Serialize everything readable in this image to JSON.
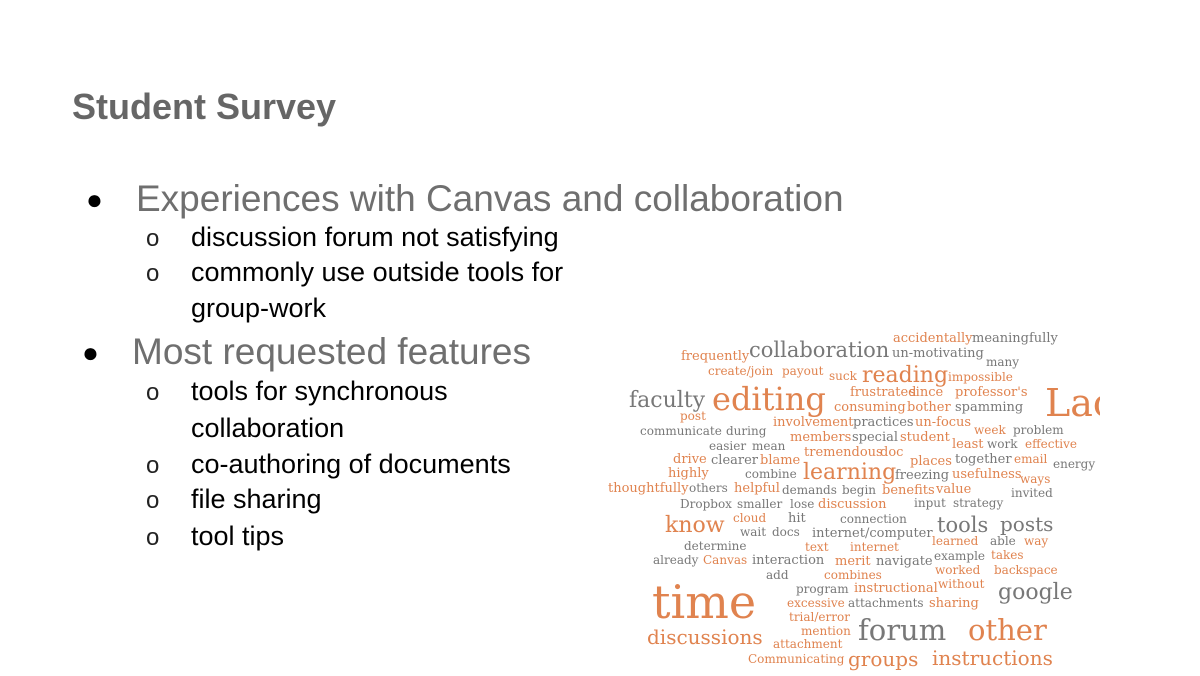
{
  "slide": {
    "title": "Student Survey",
    "bullets": [
      {
        "text": "Experiences with Canvas and collaboration",
        "sub": [
          "discussion forum not satisfying",
          "commonly use outside tools for",
          "group-work"
        ]
      },
      {
        "text": "Most requested features",
        "sub": [
          "tools for synchronous",
          "collaboration",
          "co-authoring of documents",
          "file sharing",
          "tool tips"
        ]
      }
    ],
    "bullet_glyph": "●",
    "sub_glyph": "o"
  },
  "word_cloud": {
    "colors": {
      "orange": "#e0834f",
      "gray": "#787878"
    },
    "words": [
      {
        "text": "accidentally",
        "c": "o"
      },
      {
        "text": "meaningfully",
        "c": "g"
      },
      {
        "text": "frequently",
        "c": "o"
      },
      {
        "text": "collaboration",
        "c": "g"
      },
      {
        "text": "un-motivating",
        "c": "g"
      },
      {
        "text": "many",
        "c": "g"
      },
      {
        "text": "create/join",
        "c": "o"
      },
      {
        "text": "payout",
        "c": "o"
      },
      {
        "text": "suck",
        "c": "o"
      },
      {
        "text": "reading",
        "c": "o"
      },
      {
        "text": "impossible",
        "c": "o"
      },
      {
        "text": "faculty",
        "c": "g"
      },
      {
        "text": "editing",
        "c": "o"
      },
      {
        "text": "frustrated",
        "c": "o"
      },
      {
        "text": "since",
        "c": "o"
      },
      {
        "text": "professor's",
        "c": "o"
      },
      {
        "text": "Lack",
        "c": "o"
      },
      {
        "text": "post",
        "c": "o"
      },
      {
        "text": "consuming",
        "c": "o"
      },
      {
        "text": "bother",
        "c": "o"
      },
      {
        "text": "spamming",
        "c": "g"
      },
      {
        "text": "communicate",
        "c": "g"
      },
      {
        "text": "during",
        "c": "g"
      },
      {
        "text": "involvement",
        "c": "o"
      },
      {
        "text": "practices",
        "c": "g"
      },
      {
        "text": "un-focus",
        "c": "o"
      },
      {
        "text": "week",
        "c": "o"
      },
      {
        "text": "problem",
        "c": "g"
      },
      {
        "text": "members",
        "c": "o"
      },
      {
        "text": "special",
        "c": "g"
      },
      {
        "text": "student",
        "c": "o"
      },
      {
        "text": "easier",
        "c": "g"
      },
      {
        "text": "mean",
        "c": "g"
      },
      {
        "text": "tremendous",
        "c": "o"
      },
      {
        "text": "doc",
        "c": "o"
      },
      {
        "text": "least",
        "c": "o"
      },
      {
        "text": "work",
        "c": "g"
      },
      {
        "text": "effective",
        "c": "o"
      },
      {
        "text": "drive",
        "c": "o"
      },
      {
        "text": "clearer",
        "c": "g"
      },
      {
        "text": "blame",
        "c": "o"
      },
      {
        "text": "places",
        "c": "o"
      },
      {
        "text": "together",
        "c": "g"
      },
      {
        "text": "email",
        "c": "o"
      },
      {
        "text": "energy",
        "c": "g"
      },
      {
        "text": "highly",
        "c": "o"
      },
      {
        "text": "combine",
        "c": "g"
      },
      {
        "text": "learning",
        "c": "o"
      },
      {
        "text": "freezing",
        "c": "g"
      },
      {
        "text": "usefulness",
        "c": "o"
      },
      {
        "text": "ways",
        "c": "o"
      },
      {
        "text": "thoughtfully",
        "c": "o"
      },
      {
        "text": "others",
        "c": "g"
      },
      {
        "text": "helpful",
        "c": "o"
      },
      {
        "text": "demands",
        "c": "g"
      },
      {
        "text": "begin",
        "c": "g"
      },
      {
        "text": "benefits",
        "c": "o"
      },
      {
        "text": "value",
        "c": "o"
      },
      {
        "text": "invited",
        "c": "g"
      },
      {
        "text": "Dropbox",
        "c": "g"
      },
      {
        "text": "smaller",
        "c": "g"
      },
      {
        "text": "lose",
        "c": "g"
      },
      {
        "text": "discussion",
        "c": "o"
      },
      {
        "text": "input",
        "c": "g"
      },
      {
        "text": "strategy",
        "c": "g"
      },
      {
        "text": "know",
        "c": "o"
      },
      {
        "text": "cloud",
        "c": "o"
      },
      {
        "text": "hit",
        "c": "g"
      },
      {
        "text": "connection",
        "c": "g"
      },
      {
        "text": "tools",
        "c": "g"
      },
      {
        "text": "posts",
        "c": "g"
      },
      {
        "text": "wait",
        "c": "g"
      },
      {
        "text": "docs",
        "c": "g"
      },
      {
        "text": "internet/computer",
        "c": "g"
      },
      {
        "text": "learned",
        "c": "o"
      },
      {
        "text": "able",
        "c": "g"
      },
      {
        "text": "way",
        "c": "o"
      },
      {
        "text": "determine",
        "c": "g"
      },
      {
        "text": "text",
        "c": "o"
      },
      {
        "text": "internet",
        "c": "o"
      },
      {
        "text": "example",
        "c": "g"
      },
      {
        "text": "takes",
        "c": "o"
      },
      {
        "text": "already",
        "c": "g"
      },
      {
        "text": "Canvas",
        "c": "o"
      },
      {
        "text": "interaction",
        "c": "g"
      },
      {
        "text": "merit",
        "c": "o"
      },
      {
        "text": "navigate",
        "c": "g"
      },
      {
        "text": "worked",
        "c": "o"
      },
      {
        "text": "backspace",
        "c": "o"
      },
      {
        "text": "add",
        "c": "g"
      },
      {
        "text": "combines",
        "c": "o"
      },
      {
        "text": "without",
        "c": "o"
      },
      {
        "text": "program",
        "c": "g"
      },
      {
        "text": "instructional",
        "c": "o"
      },
      {
        "text": "google",
        "c": "g"
      },
      {
        "text": "time",
        "c": "o"
      },
      {
        "text": "excessive",
        "c": "o"
      },
      {
        "text": "attachments",
        "c": "g"
      },
      {
        "text": "sharing",
        "c": "o"
      },
      {
        "text": "trial/error",
        "c": "o"
      },
      {
        "text": "mention",
        "c": "o"
      },
      {
        "text": "forum",
        "c": "g"
      },
      {
        "text": "other",
        "c": "o"
      },
      {
        "text": "discussions",
        "c": "o"
      },
      {
        "text": "attachment",
        "c": "o"
      },
      {
        "text": "Communicating",
        "c": "o"
      },
      {
        "text": "groups",
        "c": "o"
      },
      {
        "text": "instructions",
        "c": "o"
      }
    ]
  }
}
